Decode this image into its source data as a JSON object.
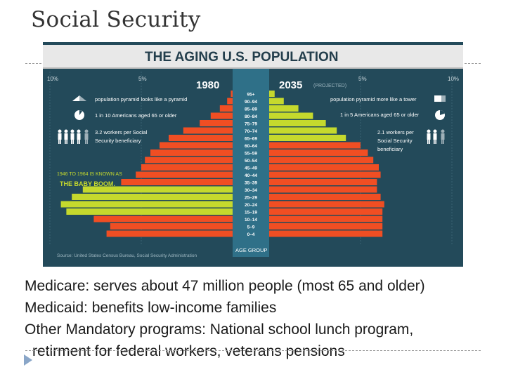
{
  "slide": {
    "title": "Social Security",
    "bullets": [
      "Medicare: serves about 47 million people (most 65 and older)",
      "Medicaid: benefits low-income families",
      "Other Mandatory programs: National school lunch program,",
      "retirment for federal workers, veterans pensions"
    ]
  },
  "chart_data": {
    "type": "bar",
    "orientation": "horizontal-population-pyramid",
    "title": "THE AGING U.S. POPULATION",
    "ylabel": "AGE GROUP",
    "axis_ticks": [
      "10%",
      "5%",
      "5%",
      "10%"
    ],
    "xlim": [
      0,
      10
    ],
    "categories": [
      "95+",
      "90–94",
      "85–89",
      "80–84",
      "75–79",
      "70–74",
      "65–69",
      "60–64",
      "55–59",
      "50–54",
      "45–49",
      "40–44",
      "35–39",
      "30–34",
      "25–29",
      "20–24",
      "15–19",
      "10–14",
      "5–9",
      "0–4"
    ],
    "series": [
      {
        "name": "1980",
        "side": "left",
        "values": [
          0.1,
          0.3,
          0.7,
          1.2,
          1.8,
          2.7,
          3.5,
          4.0,
          4.5,
          4.8,
          5.0,
          5.3,
          6.1,
          8.2,
          8.8,
          9.4,
          9.1,
          7.6,
          6.7,
          6.9
        ]
      },
      {
        "name": "2035",
        "side": "right",
        "label_note": "(PROJECTED)",
        "values": [
          0.3,
          0.8,
          1.6,
          2.4,
          3.1,
          3.7,
          4.2,
          5.0,
          5.4,
          5.7,
          6.0,
          6.1,
          5.9,
          5.9,
          6.1,
          6.3,
          6.2,
          6.2,
          6.2,
          6.2
        ]
      }
    ],
    "highlight_groups_1980": [
      "15–19",
      "20–24",
      "25–29",
      "30–34"
    ],
    "highlight_groups_2035": [
      "65–69",
      "70–74",
      "75–79",
      "80–84",
      "85–89",
      "90–94",
      "95+"
    ],
    "colors": {
      "background": "#234a5a",
      "center_band": "#2f7088",
      "bar": "#f04e23",
      "highlight": "#c5d92d",
      "text": "#ffffff",
      "title_band": "#e8e8e8",
      "title_text": "#233e4c"
    },
    "annotations": {
      "left": [
        "population pyramid looks like a pyramid",
        "1 in 10 Americans aged 65 or older",
        "3.2 workers per Social",
        "Security beneficiary"
      ],
      "right": [
        "population pyramid more like a tower",
        "1 in 5 Americans aged 65 or older",
        "2.1 workers per",
        "Social Security",
        "beneficiary"
      ],
      "baby_boom": [
        "1946 TO 1964 IS KNOWN AS",
        "THE BABY BOOM."
      ]
    },
    "source": "Source: United States Census Bureau, Social Security Administration"
  }
}
